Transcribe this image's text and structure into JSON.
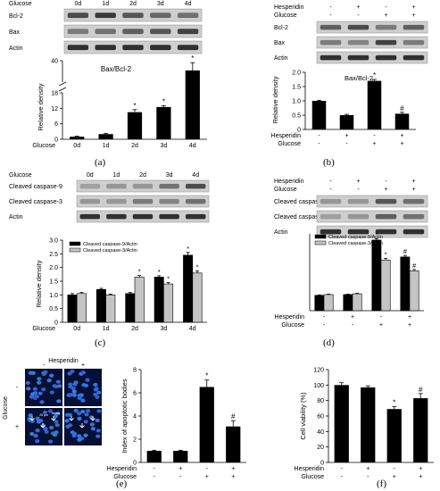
{
  "figure": {
    "panel_labels": [
      "(a)",
      "(b)",
      "(c)",
      "(d)",
      "(e)",
      "(f)"
    ],
    "blots": {
      "a": {
        "header_label": "Glucose",
        "lanes": [
          "0d",
          "1d",
          "2d",
          "3d",
          "4d"
        ],
        "rows": [
          "Bcl-2",
          "Bax",
          "Actin"
        ]
      },
      "b": {
        "condition_labels": [
          "Hesperidin",
          "Glucose"
        ],
        "hesperidin_signs": [
          "-",
          "+",
          "-",
          "+"
        ],
        "glucose_signs": [
          "-",
          "-",
          "+",
          "+"
        ],
        "rows": [
          "Bcl-2",
          "Bax",
          "Actin"
        ]
      },
      "c": {
        "header_label": "Glucose",
        "lanes": [
          "0d",
          "1d",
          "2d",
          "3d",
          "4d"
        ],
        "rows": [
          "Cleaved caspase-9",
          "Cleaved caspase-3",
          "Actin"
        ]
      },
      "d": {
        "condition_labels": [
          "Hesperidin",
          "Glucose"
        ],
        "hesperidin_signs": [
          "-",
          "+",
          "-",
          "+"
        ],
        "glucose_signs": [
          "-",
          "-",
          "+",
          "+"
        ],
        "rows": [
          "Cleaved caspase-9",
          "Cleaved caspase-3",
          "Actin"
        ]
      },
      "e": {
        "header_label": "Hesperidin",
        "column_signs": [
          "-",
          "+"
        ],
        "row_label": "Glucose",
        "row_signs": [
          "-",
          "+"
        ],
        "scale_bar": "25 μm"
      }
    }
  },
  "chart_data": [
    {
      "id": "a",
      "type": "bar",
      "title": "Bax/Bcl-2",
      "ylabel": "Relative density",
      "x_axis_label": "Glucose",
      "categories": [
        "0d",
        "1d",
        "2d",
        "3d",
        "4d"
      ],
      "series": [
        {
          "values": [
            1,
            2,
            10.5,
            12.5,
            30
          ],
          "errors": [
            0.2,
            0.3,
            1,
            0.5,
            8
          ]
        }
      ],
      "significance": [
        "",
        "",
        "*",
        "*",
        "*"
      ],
      "yticks": [
        "0",
        "6",
        "12",
        "18",
        "40"
      ],
      "broken_axis": true,
      "ylim": [
        0,
        45
      ]
    },
    {
      "id": "b",
      "type": "bar",
      "title": "Bax/Bcl-2",
      "ylabel": "Relative density",
      "yticks": [
        "0",
        "0.5",
        "1.0",
        "1.5",
        "2.0"
      ],
      "ylim": [
        0,
        2
      ],
      "conditions": {
        "labels": [
          "Hesperidin",
          "Glucose"
        ],
        "rows": [
          [
            "-",
            "+",
            "-",
            "+"
          ],
          [
            "-",
            "-",
            "+",
            "+"
          ]
        ]
      },
      "series": [
        {
          "values": [
            1.0,
            0.5,
            1.7,
            0.55
          ],
          "errors": [
            0.02,
            0.03,
            0.05,
            0.05
          ]
        }
      ],
      "significance": [
        "",
        "",
        "*",
        "#"
      ]
    },
    {
      "id": "c",
      "type": "bar",
      "ylabel": "Relative density",
      "x_axis_label": "Glucose",
      "categories": [
        "0d",
        "1d",
        "2d",
        "3d",
        "4d"
      ],
      "yticks": [
        "0",
        "0.5",
        "1.0",
        "1.5",
        "2.0",
        "2.5",
        "3.0"
      ],
      "ylim": [
        0,
        3
      ],
      "legend": [
        "Cleaved caspase-9/Actin",
        "Cleaved caspase-3/Actin"
      ],
      "series": [
        {
          "name": "Cleaved caspase-9/Actin",
          "values": [
            1.0,
            1.2,
            1.05,
            1.65,
            2.45
          ],
          "errors": [
            0.05,
            0.04,
            0.04,
            0.05,
            0.1
          ]
        },
        {
          "name": "Cleaved caspase-3/Actin",
          "values": [
            1.05,
            1.0,
            1.65,
            1.4,
            1.8
          ],
          "errors": [
            0.04,
            0.03,
            0.06,
            0.05,
            0.08
          ]
        }
      ],
      "significance": [
        [
          "",
          ""
        ],
        [
          "",
          ""
        ],
        [
          "",
          "*"
        ],
        [
          "*",
          "*"
        ],
        [
          "*",
          "*"
        ]
      ]
    },
    {
      "id": "d",
      "type": "bar",
      "yticks": [
        "0",
        "0.5",
        "1.0",
        "1.5",
        "2.0",
        "2.5",
        "3.0",
        "3.5",
        "4.0",
        "4.5",
        "5.0"
      ],
      "ylim": [
        0,
        5
      ],
      "legend": [
        "Cleaved caspase-9/Actin",
        "Cleaved caspase-3/Actin"
      ],
      "conditions": {
        "labels": [
          "Hesperidin",
          "Glucose"
        ],
        "rows": [
          [
            "-",
            "+",
            "-",
            "+"
          ],
          [
            "-",
            "-",
            "+",
            "+"
          ]
        ]
      },
      "series": [
        {
          "name": "Cleaved caspase-9/Actin",
          "values": [
            1.0,
            1.05,
            4.6,
            3.5
          ],
          "errors": [
            0.03,
            0.03,
            0.1,
            0.1
          ]
        },
        {
          "name": "Cleaved caspase-3/Actin",
          "values": [
            1.05,
            1.1,
            3.3,
            2.6
          ],
          "errors": [
            0.03,
            0.03,
            0.1,
            0.08
          ]
        }
      ],
      "significance": [
        [
          "",
          ""
        ],
        [
          "",
          ""
        ],
        [
          "*",
          "*"
        ],
        [
          "#",
          "#"
        ]
      ]
    },
    {
      "id": "e",
      "type": "bar",
      "ylabel": "Index of apoptotic bodies",
      "yticks": [
        "0",
        "2",
        "4",
        "6",
        "8"
      ],
      "ylim": [
        0,
        8
      ],
      "conditions": {
        "labels": [
          "Hesperidin",
          "Glucose"
        ],
        "rows": [
          [
            "-",
            "+",
            "-",
            "+"
          ],
          [
            "-",
            "-",
            "+",
            "+"
          ]
        ]
      },
      "series": [
        {
          "values": [
            1.0,
            1.0,
            6.5,
            3.1
          ],
          "errors": [
            0.05,
            0.05,
            0.6,
            0.5
          ]
        }
      ],
      "significance": [
        "",
        "",
        "*",
        "#"
      ]
    },
    {
      "id": "f",
      "type": "bar",
      "ylabel": "Cell viability (%)",
      "yticks": [
        "0",
        "20",
        "40",
        "60",
        "80",
        "100",
        "120"
      ],
      "ylim": [
        0,
        120
      ],
      "conditions": {
        "labels": [
          "Hesperidin",
          "Glucose"
        ],
        "rows": [
          [
            "-",
            "+",
            "-",
            "+"
          ],
          [
            "-",
            "-",
            "+",
            "+"
          ]
        ]
      },
      "series": [
        {
          "values": [
            100,
            97,
            69,
            83
          ],
          "errors": [
            3,
            2,
            3,
            6
          ]
        }
      ],
      "significance": [
        "",
        "",
        "*",
        "#"
      ]
    }
  ]
}
